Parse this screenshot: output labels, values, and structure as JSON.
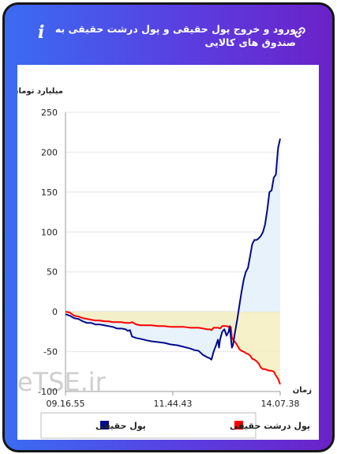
{
  "header": {
    "title": "ورود و خروج پول حقیقی و پول درشت حقیقی به صندوق های کالایی",
    "info_icon": "info-icon",
    "link_icon": "link-icon"
  },
  "watermark": "LiveTSE.ir",
  "colors": {
    "series_real_money": "#000a8c",
    "series_big_real_money": "#ff0000",
    "positive_fill": "#e6f1fa",
    "negative_fill": "#f5efc0"
  },
  "chart_data": {
    "type": "line",
    "ylabel": "میلیارد تومان",
    "xlabel": "زمان",
    "ylim": [
      -100,
      250
    ],
    "yticks": [
      -100,
      -50,
      0,
      50,
      100,
      150,
      200,
      250
    ],
    "xticks": [
      "09.16.55",
      "11.44.43",
      "14.07.38"
    ],
    "grid": true,
    "legend_position": "bottom",
    "x_note": "x values are positions along the time axis, 0 = 09.16.55, 100 = 14.07.38",
    "series": [
      {
        "name": "پول حقیقی",
        "color": "#000a8c",
        "points": [
          [
            0,
            -3
          ],
          [
            2,
            -5
          ],
          [
            4,
            -8
          ],
          [
            6,
            -9
          ],
          [
            8,
            -12
          ],
          [
            10,
            -14
          ],
          [
            12,
            -14
          ],
          [
            14,
            -16
          ],
          [
            16,
            -16
          ],
          [
            18,
            -17
          ],
          [
            20,
            -18
          ],
          [
            22,
            -19
          ],
          [
            24,
            -21
          ],
          [
            26,
            -21
          ],
          [
            28,
            -22
          ],
          [
            29,
            -24
          ],
          [
            30,
            -23
          ],
          [
            31,
            -31
          ],
          [
            33,
            -33
          ],
          [
            35,
            -34
          ],
          [
            38,
            -36
          ],
          [
            40,
            -37
          ],
          [
            43,
            -38
          ],
          [
            46,
            -39
          ],
          [
            49,
            -41
          ],
          [
            52,
            -42
          ],
          [
            55,
            -44
          ],
          [
            58,
            -46
          ],
          [
            60,
            -48
          ],
          [
            62,
            -49
          ],
          [
            64,
            -54
          ],
          [
            66,
            -57
          ],
          [
            67,
            -58
          ],
          [
            68,
            -60
          ],
          [
            69,
            -50
          ],
          [
            70,
            -43
          ],
          [
            71,
            -35
          ],
          [
            71.5,
            -45
          ],
          [
            72,
            -35
          ],
          [
            73,
            -25
          ],
          [
            74,
            -22
          ],
          [
            74.5,
            -26
          ],
          [
            75,
            -30
          ],
          [
            76,
            -25
          ],
          [
            76.5,
            -18
          ],
          [
            77,
            -32
          ],
          [
            77.5,
            -45
          ],
          [
            78,
            -42
          ],
          [
            79,
            -25
          ],
          [
            80,
            -10
          ],
          [
            81,
            8
          ],
          [
            82,
            25
          ],
          [
            83,
            40
          ],
          [
            84,
            50
          ],
          [
            85,
            55
          ],
          [
            86,
            70
          ],
          [
            87,
            85
          ],
          [
            88,
            90
          ],
          [
            89,
            90
          ],
          [
            90,
            92
          ],
          [
            91,
            95
          ],
          [
            92,
            100
          ],
          [
            93,
            110
          ],
          [
            94,
            128
          ],
          [
            95,
            150
          ],
          [
            96,
            152
          ],
          [
            97,
            168
          ],
          [
            98,
            172
          ],
          [
            99,
            205
          ],
          [
            100,
            217
          ]
        ]
      },
      {
        "name": "پول درشت حقیقی",
        "color": "#ff0000",
        "points": [
          [
            0,
            0
          ],
          [
            2,
            -1
          ],
          [
            3,
            -3
          ],
          [
            4,
            -5
          ],
          [
            6,
            -6
          ],
          [
            8,
            -8
          ],
          [
            10,
            -9
          ],
          [
            12,
            -10
          ],
          [
            14,
            -11
          ],
          [
            16,
            -11
          ],
          [
            18,
            -12
          ],
          [
            20,
            -12
          ],
          [
            22,
            -13
          ],
          [
            24,
            -13
          ],
          [
            26,
            -13
          ],
          [
            28,
            -14
          ],
          [
            30,
            -14
          ],
          [
            31,
            -13
          ],
          [
            33,
            -16
          ],
          [
            35,
            -17
          ],
          [
            38,
            -17
          ],
          [
            40,
            -17
          ],
          [
            43,
            -18
          ],
          [
            46,
            -18
          ],
          [
            49,
            -19
          ],
          [
            52,
            -19
          ],
          [
            55,
            -19
          ],
          [
            58,
            -20
          ],
          [
            60,
            -20
          ],
          [
            62,
            -20
          ],
          [
            64,
            -21
          ],
          [
            66,
            -22
          ],
          [
            67,
            -22
          ],
          [
            68,
            -23
          ],
          [
            69,
            -20
          ],
          [
            70,
            -20
          ],
          [
            71,
            -20
          ],
          [
            72,
            -21
          ],
          [
            73,
            -18
          ],
          [
            74,
            -18
          ],
          [
            75,
            -18
          ],
          [
            76,
            -19
          ],
          [
            76.5,
            -19
          ],
          [
            77,
            -19
          ],
          [
            77.5,
            -32
          ],
          [
            78,
            -35
          ],
          [
            79,
            -38
          ],
          [
            80,
            -42
          ],
          [
            81,
            -47
          ],
          [
            82,
            -49
          ],
          [
            83,
            -50
          ],
          [
            84,
            -52
          ],
          [
            85,
            -53
          ],
          [
            86,
            -55
          ],
          [
            87,
            -59
          ],
          [
            88,
            -60
          ],
          [
            89,
            -62
          ],
          [
            90,
            -65
          ],
          [
            91,
            -70
          ],
          [
            92,
            -72
          ],
          [
            93,
            -72
          ],
          [
            94,
            -73
          ],
          [
            95,
            -74
          ],
          [
            96,
            -74
          ],
          [
            97,
            -75
          ],
          [
            98,
            -80
          ],
          [
            99,
            -84
          ],
          [
            100,
            -91
          ]
        ]
      }
    ]
  }
}
